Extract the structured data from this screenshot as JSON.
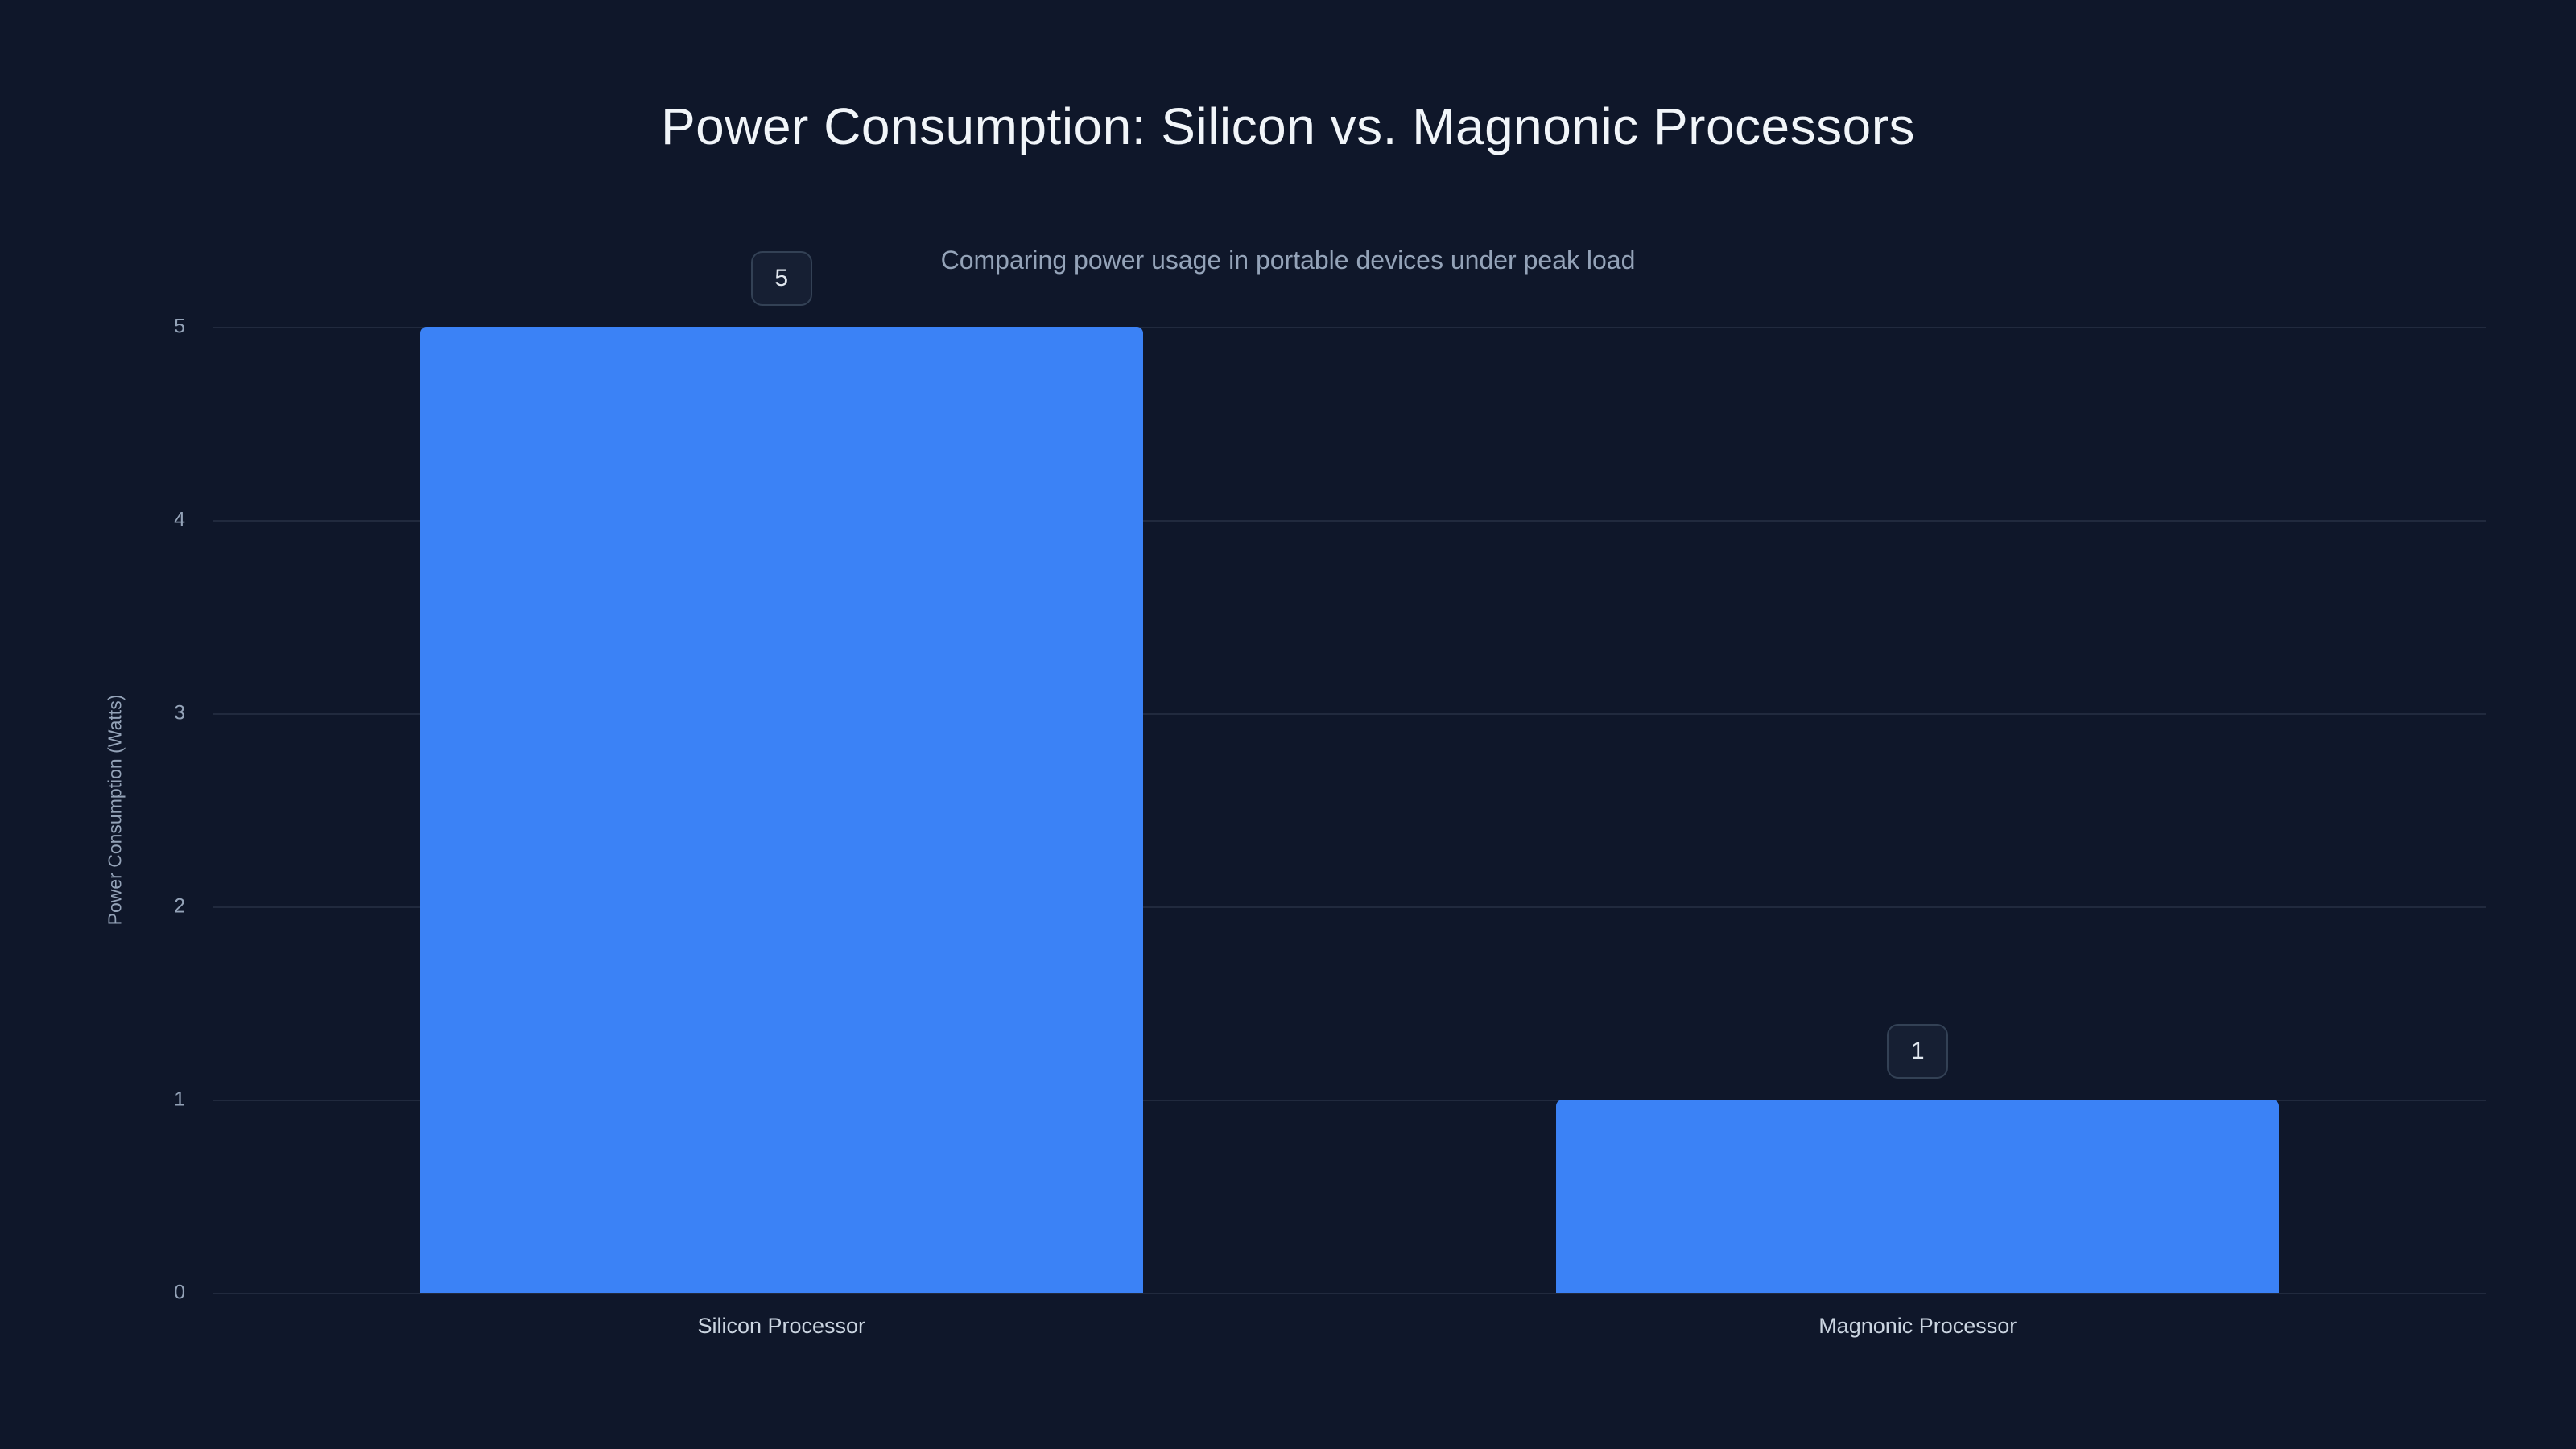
{
  "chart_data": {
    "type": "bar",
    "title": "Power Consumption: Silicon vs. Magnonic Processors",
    "subtitle": "Comparing power usage in portable devices under peak load",
    "ylabel": "Power Consumption (Watts)",
    "categories": [
      "Silicon Processor",
      "Magnonic Processor"
    ],
    "values": [
      5,
      1
    ],
    "data_labels": [
      "5",
      "1"
    ],
    "ylim": [
      0,
      5
    ],
    "yticks": [
      0,
      1,
      2,
      3,
      4,
      5
    ],
    "grid": "horizontal",
    "legend": "none",
    "bar_color": "#3b82f6",
    "background_color": "#0f172a"
  }
}
